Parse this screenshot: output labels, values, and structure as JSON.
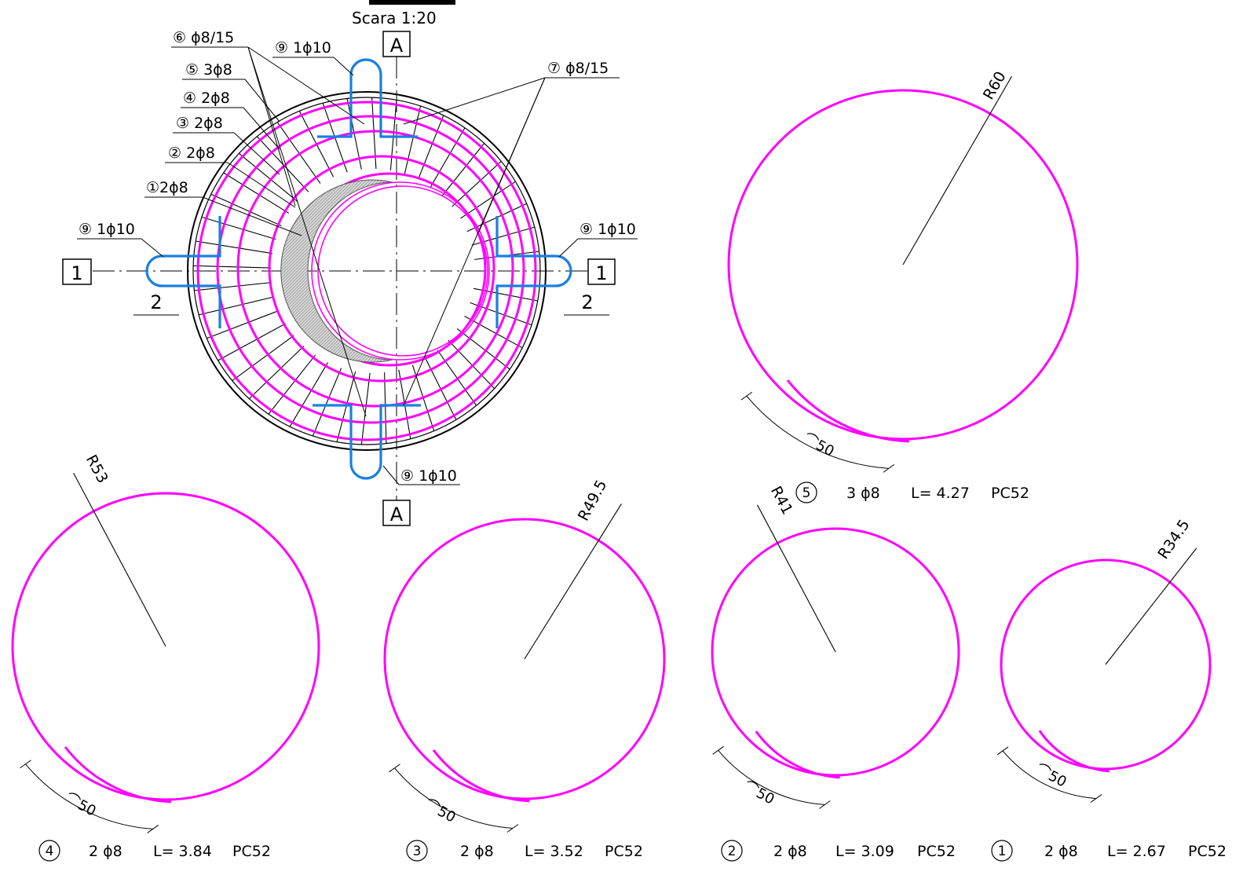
{
  "plan": {
    "title_partial": "Scara 1:20",
    "scale": "Scara 1:20",
    "section_marks": {
      "top": "A",
      "bottom": "A",
      "left": "1",
      "right": "1",
      "left_sub": "2",
      "right_sub": "2"
    },
    "callouts": {
      "c6": "⑥ ϕ8/15",
      "c5": "⑤ 3ϕ8",
      "c4": "④ 2ϕ8",
      "c3": "③ 2ϕ8",
      "c2": "② 2ϕ8",
      "c1": "①2ϕ8",
      "c9_top": "⑨ 1ϕ10",
      "c9_left": "⑨ 1ϕ10",
      "c9_right": "⑨ 1ϕ10",
      "c9_bottom": "⑨ 1ϕ10",
      "c7": "⑦ ϕ8/15"
    }
  },
  "bars": [
    {
      "mark": "5",
      "radius_label": "R60",
      "overlap_label": "50",
      "spec": "3 ϕ8",
      "length": "L= 4.27",
      "steel": "PC52"
    },
    {
      "mark": "4",
      "radius_label": "R53",
      "overlap_label": "50",
      "spec": "2 ϕ8",
      "length": "L= 3.84",
      "steel": "PC52"
    },
    {
      "mark": "3",
      "radius_label": "R49.5",
      "overlap_label": "50",
      "spec": "2 ϕ8",
      "length": "L= 3.52",
      "steel": "PC52"
    },
    {
      "mark": "2",
      "radius_label": "R41",
      "overlap_label": "50",
      "spec": "2 ϕ8",
      "length": "L= 3.09",
      "steel": "PC52"
    },
    {
      "mark": "1",
      "radius_label": "R34.5",
      "overlap_label": "50",
      "spec": "2 ϕ8",
      "length": "L= 2.67",
      "steel": "PC52"
    }
  ],
  "colors": {
    "rebar_rings": "#ff00ff",
    "hooks": "#1a7fe0",
    "lines": "#000000"
  }
}
